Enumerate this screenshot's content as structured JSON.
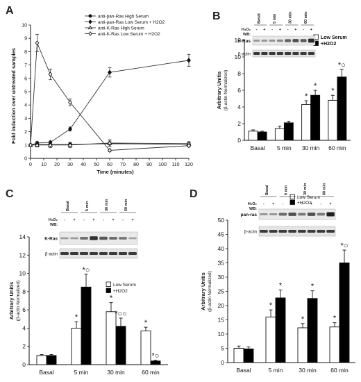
{
  "chart_data": [
    {
      "panel": "A",
      "type": "line",
      "xlabel": "Time (minutes)",
      "ylabel": "Fold induction over untreated samples",
      "xlim": [
        0,
        120
      ],
      "ylim": [
        0,
        10
      ],
      "xticks": [
        0,
        10,
        20,
        30,
        40,
        50,
        60,
        70,
        80,
        90,
        100,
        110,
        120
      ],
      "yticks": [
        0,
        1,
        2,
        3,
        4,
        5,
        6,
        7,
        8,
        9,
        10
      ],
      "legend_position": "top-right",
      "series": [
        {
          "name": "anti-pan-Ras High Serum",
          "marker": "filled-circle",
          "x": [
            0,
            5,
            15,
            30,
            60,
            120
          ],
          "y": [
            1.0,
            1.05,
            1.05,
            1.05,
            1.1,
            1.05
          ],
          "err": [
            0.05,
            0.15,
            0.15,
            0.15,
            0.2,
            0.15
          ]
        },
        {
          "name": "anti-pan-Ras Low Serum + H2O2",
          "marker": "filled-diamond",
          "x": [
            0,
            5,
            15,
            30,
            60,
            120
          ],
          "y": [
            1.0,
            1.15,
            1.2,
            2.2,
            6.45,
            7.35
          ],
          "err": [
            0.05,
            0.1,
            0.1,
            0.15,
            0.35,
            0.45
          ]
        },
        {
          "name": "anti-K-Ras High Serum",
          "marker": "open-triangle",
          "x": [
            0,
            5,
            15,
            30,
            60,
            120
          ],
          "y": [
            1.0,
            1.0,
            1.0,
            1.0,
            1.15,
            1.1
          ],
          "err": [
            0.05,
            0.15,
            0.2,
            0.2,
            0.25,
            0.15
          ]
        },
        {
          "name": "anti-K-Ras Low Serum + H2O2",
          "marker": "open-diamond",
          "x": [
            0,
            5,
            15,
            30,
            60,
            120
          ],
          "y": [
            1.0,
            8.65,
            6.3,
            4.2,
            0.6,
            0.95
          ],
          "err": [
            0.05,
            0.65,
            0.4,
            0.25,
            0.1,
            0.1
          ]
        }
      ]
    },
    {
      "panel": "B",
      "type": "bar",
      "categories": [
        "Basal",
        "5 min",
        "30 min",
        "60 min"
      ],
      "ylabel": "Arbitrary Unitis",
      "ylabel_sub": "(β-actin Normalized)",
      "ylim": [
        0,
        12
      ],
      "yticks": [
        0,
        2,
        4,
        6,
        8,
        10,
        12
      ],
      "series": [
        {
          "name": "Low Serum",
          "fill": "#ffffff",
          "values": [
            1.1,
            1.4,
            4.3,
            4.8
          ],
          "err": [
            0.15,
            0.3,
            0.45,
            0.6
          ],
          "marks": [
            "",
            "",
            "*",
            "*"
          ]
        },
        {
          "name": "+H2O2",
          "fill": "#000000",
          "values": [
            1.0,
            2.1,
            5.4,
            7.6
          ],
          "err": [
            0.1,
            0.2,
            0.6,
            0.9
          ],
          "marks": [
            "",
            "",
            "*",
            "*○"
          ]
        }
      ],
      "blot": {
        "target": "H-Ras",
        "control": "β-actin",
        "lanes": [
          "Basal",
          "5 min",
          "30 min",
          "60 min"
        ]
      }
    },
    {
      "panel": "C",
      "type": "bar",
      "categories": [
        "Basal",
        "5 min",
        "30 min",
        "60 min"
      ],
      "ylabel": "Arbitrary Unitis",
      "ylabel_sub": "(β-actin Normalized)",
      "ylim": [
        0,
        14
      ],
      "yticks": [
        0,
        2,
        4,
        6,
        8,
        10,
        12,
        14
      ],
      "series": [
        {
          "name": "Low Serum",
          "fill": "#ffffff",
          "values": [
            1.0,
            4.0,
            5.8,
            3.7
          ],
          "err": [
            0.1,
            0.7,
            1.0,
            0.4
          ],
          "marks": [
            "",
            "*",
            "*",
            "*"
          ]
        },
        {
          "name": "+H2O2",
          "fill": "#000000",
          "values": [
            1.0,
            8.5,
            4.2,
            0.4
          ],
          "err": [
            0.1,
            1.4,
            0.9,
            0.1
          ],
          "marks": [
            "",
            "*○",
            "*○○",
            "*○"
          ]
        }
      ],
      "blot": {
        "target": "K-Ras",
        "control": "β-actin",
        "lanes": [
          "Basal",
          "5 min",
          "30 min",
          "60 min"
        ]
      }
    },
    {
      "panel": "D",
      "type": "bar",
      "categories": [
        "Basal",
        "5 min",
        "30 min",
        "60 min"
      ],
      "ylabel": "Arbitrary Unitis",
      "ylabel_sub": "(β-actin Normalized)",
      "ylim": [
        0,
        50
      ],
      "yticks": [
        0,
        5,
        10,
        15,
        20,
        25,
        30,
        35,
        40,
        45,
        50
      ],
      "series": [
        {
          "name": "Low Serum",
          "fill": "#ffffff",
          "values": [
            5.0,
            16.0,
            12.2,
            12.5
          ],
          "err": [
            0.8,
            2.5,
            1.5,
            1.5
          ],
          "marks": [
            "",
            "*",
            "*",
            "*"
          ]
        },
        {
          "name": "+H2O2",
          "fill": "#000000",
          "values": [
            4.8,
            22.7,
            22.5,
            35.0
          ],
          "err": [
            0.7,
            2.8,
            2.7,
            4.5
          ],
          "marks": [
            "",
            "*",
            "*",
            "*○"
          ]
        }
      ],
      "blot": {
        "target": "pan-ras",
        "control": "β-actin",
        "lanes": [
          "Basal",
          "5 min",
          "30 min",
          "60 min"
        ]
      }
    }
  ],
  "labels": {
    "panels": [
      "A",
      "B",
      "C",
      "D"
    ],
    "h2o2": "H₂O₂",
    "wb": "WB:",
    "minus": "-",
    "plus": "+"
  }
}
